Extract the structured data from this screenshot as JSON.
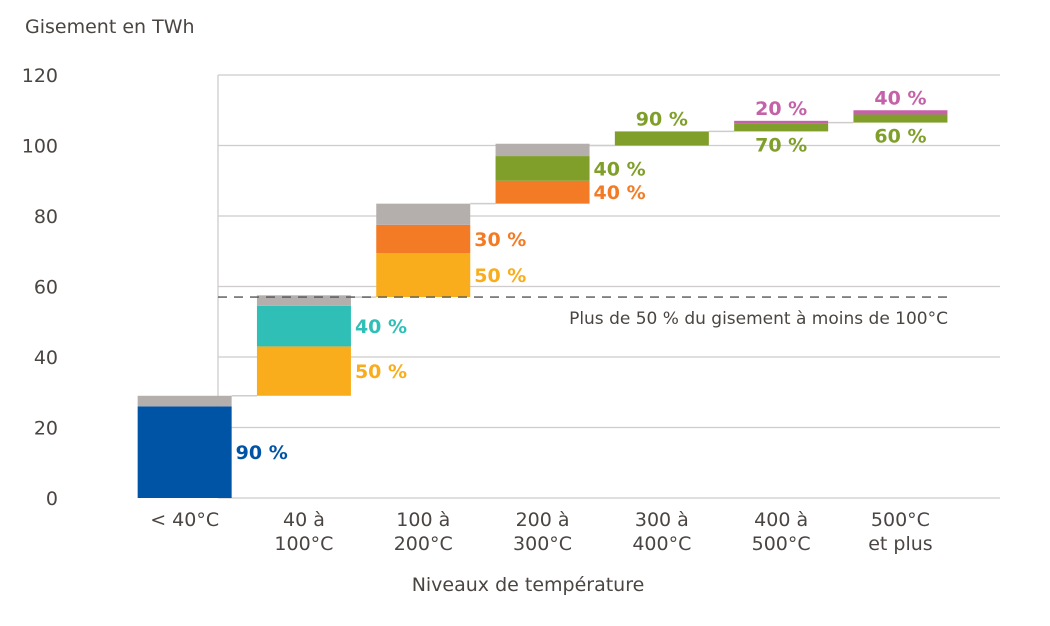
{
  "chart_data": {
    "type": "bar",
    "subtype": "waterfall-stacked",
    "ylabel": "Gisement en TWh",
    "xlabel": "Niveaux de température",
    "ylim": [
      0,
      120
    ],
    "yticks": [
      0,
      20,
      40,
      60,
      80,
      100,
      120
    ],
    "grid": true,
    "categories": [
      [
        "< 40°C"
      ],
      [
        "40 à",
        "100°C"
      ],
      [
        "100 à",
        "200°C"
      ],
      [
        "200 à",
        "300°C"
      ],
      [
        "300 à",
        "400°C"
      ],
      [
        "400 à",
        "500°C"
      ],
      [
        "500°C",
        "et plus"
      ]
    ],
    "colors": {
      "blue": "#0054a6",
      "yellow": "#f9ad1d",
      "teal": "#2fbfb6",
      "orange": "#f47b25",
      "green": "#7f9f2a",
      "pink": "#c561a9",
      "gray": "#b4afac",
      "grid": "#cfcccb",
      "text": "#4a4542"
    },
    "bars": [
      {
        "base": 0,
        "segments": [
          {
            "value": 26,
            "color": "blue",
            "label": "90 %",
            "label_pos": "right-mid"
          },
          {
            "value": 3,
            "color": "gray",
            "label": ""
          }
        ]
      },
      {
        "base": 29,
        "segments": [
          {
            "value": 14,
            "color": "yellow",
            "label": "50 %",
            "label_pos": "right-mid"
          },
          {
            "value": 11.5,
            "color": "teal",
            "label": "40 %",
            "label_pos": "right-mid"
          },
          {
            "value": 3,
            "color": "gray",
            "label": ""
          }
        ]
      },
      {
        "base": 57,
        "segments": [
          {
            "value": 12.5,
            "color": "yellow",
            "label": "50 %",
            "label_pos": "right-mid"
          },
          {
            "value": 8,
            "color": "orange",
            "label": "30 %",
            "label_pos": "right-mid"
          },
          {
            "value": 6,
            "color": "gray",
            "label": ""
          }
        ]
      },
      {
        "base": 83.5,
        "segments": [
          {
            "value": 6.5,
            "color": "orange",
            "label": "40 %",
            "label_pos": "right-mid"
          },
          {
            "value": 7,
            "color": "green",
            "label": "40 %",
            "label_pos": "right-mid"
          },
          {
            "value": 3.5,
            "color": "gray",
            "label": ""
          }
        ]
      },
      {
        "base": 100,
        "segments": [
          {
            "value": 4,
            "color": "green",
            "label": "90 %",
            "label_pos": "above"
          }
        ]
      },
      {
        "base": 104,
        "segments": [
          {
            "value": 2.2,
            "color": "green",
            "label": "70 %",
            "label_pos": "below"
          },
          {
            "value": 0.8,
            "color": "pink",
            "label": "20 %",
            "label_pos": "above"
          }
        ]
      },
      {
        "base": 106.5,
        "segments": [
          {
            "value": 2.3,
            "color": "green",
            "label": "60 %",
            "label_pos": "below"
          },
          {
            "value": 1.2,
            "color": "pink",
            "label": "40 %",
            "label_pos": "above"
          }
        ]
      }
    ],
    "reference_line": {
      "value": 57,
      "style": "dashed",
      "label": "Plus de 50 % du gisement à moins de 100°C"
    }
  }
}
